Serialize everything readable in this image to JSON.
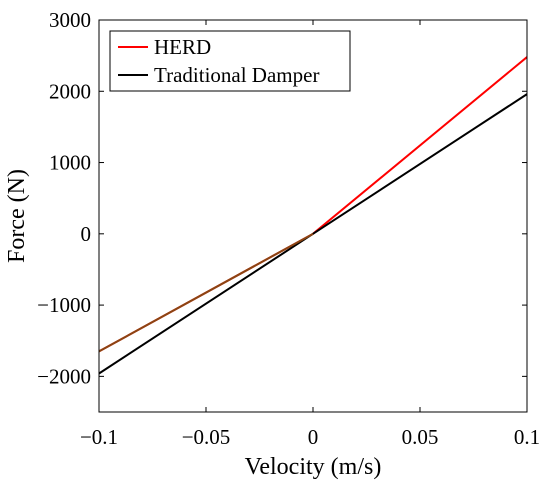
{
  "chart_data": {
    "type": "line",
    "title": "",
    "xlabel": "Velocity (m/s)",
    "ylabel": "Force (N)",
    "xlim": [
      -0.1,
      0.1
    ],
    "ylim": [
      -2500,
      3000
    ],
    "xticks": [
      -0.1,
      -0.05,
      0,
      0.05,
      0.1
    ],
    "xtick_labels": [
      "−0.1",
      "−0.05",
      "0",
      "0.05",
      "0.1"
    ],
    "yticks": [
      -2000,
      -1000,
      0,
      1000,
      2000,
      3000
    ],
    "ytick_labels": [
      "−2000",
      "−1000",
      "0",
      "1000",
      "2000",
      "3000"
    ],
    "grid": false,
    "legend_position": "top-left",
    "series": [
      {
        "name": "HERD",
        "color": "#ff0000",
        "x": [
          -0.1,
          0,
          0.1
        ],
        "y": [
          -1650,
          0,
          2480
        ]
      },
      {
        "name": "Traditional Damper",
        "color": "#000000",
        "x": [
          -0.1,
          0,
          0.1
        ],
        "y": [
          -1960,
          0,
          1960
        ]
      }
    ],
    "overlap_tint": "#8b4513"
  }
}
